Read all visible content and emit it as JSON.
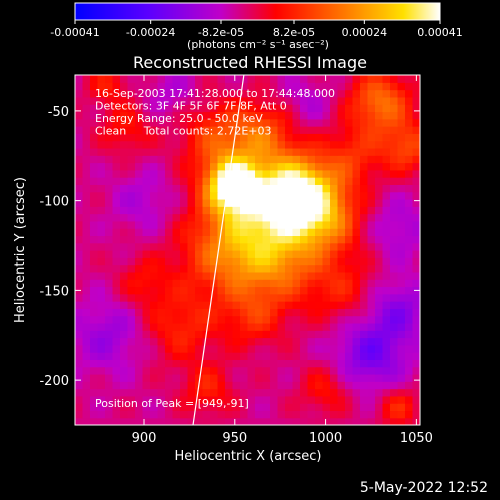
{
  "chart_data": {
    "type": "heatmap",
    "title": "Reconstructed RHESSI Image",
    "xlabel": "Heliocentric X (arcsec)",
    "ylabel": "Heliocentric Y (arcsec)",
    "xlim": [
      862,
      1052
    ],
    "ylim": [
      -225,
      -30
    ],
    "xticks": [
      "900",
      "950",
      "1000",
      "1050"
    ],
    "xtick_values": [
      900,
      950,
      1000,
      1050
    ],
    "yticks": [
      "-50",
      "-100",
      "-150",
      "-200"
    ],
    "ytick_values": [
      -50,
      -100,
      -150,
      -200
    ],
    "colorbar": {
      "ticks": [
        "-0.00041",
        "-0.00024",
        "-8.2e-05",
        "8.2e-05",
        "0.00024",
        "0.00041"
      ],
      "tick_values": [
        -0.00041,
        -0.00024,
        -8.2e-05,
        8.2e-05,
        0.00024,
        0.00041
      ],
      "range": [
        -0.00041,
        0.00041
      ],
      "unit_label": "(photons cm⁻² s⁻¹ asec⁻²)"
    },
    "annotations": [
      "16-Sep-2003 17:41:28.000 to 17:44:48.000",
      "Detectors: 3F 4F 5F 6F 7F 8F, Att 0",
      "Energy Range: 25.0 - 50.0 keV",
      "Clean     Total counts: 2.72E+03"
    ],
    "peak_text": "Position of Peak = [949,-91]",
    "peak": [
      949,
      -91
    ],
    "limb_line": [
      [
        927,
        -225
      ],
      [
        955,
        -30
      ]
    ],
    "blobs": [
      {
        "x": 949,
        "y": -91,
        "v": 0.00041,
        "s": 10
      },
      {
        "x": 985,
        "y": -95,
        "v": 0.00036,
        "s": 14
      },
      {
        "x": 965,
        "y": -105,
        "v": 0.00026,
        "s": 20
      },
      {
        "x": 1000,
        "y": -110,
        "v": 0.0002,
        "s": 14
      },
      {
        "x": 945,
        "y": -130,
        "v": 0.00018,
        "s": 18
      },
      {
        "x": 975,
        "y": -135,
        "v": 0.00016,
        "s": 16
      },
      {
        "x": 940,
        "y": -65,
        "v": 0.00015,
        "s": 14
      },
      {
        "x": 965,
        "y": -62,
        "v": 0.00016,
        "s": 12
      },
      {
        "x": 1030,
        "y": -45,
        "v": 0.00022,
        "s": 12
      },
      {
        "x": 1045,
        "y": -70,
        "v": 0.00016,
        "s": 10
      },
      {
        "x": 1015,
        "y": -75,
        "v": 0.00012,
        "s": 12
      },
      {
        "x": 890,
        "y": -60,
        "v": 0.0001,
        "s": 10
      },
      {
        "x": 880,
        "y": -35,
        "v": 0.0001,
        "s": 8
      },
      {
        "x": 920,
        "y": -170,
        "v": 0.00012,
        "s": 14
      },
      {
        "x": 960,
        "y": -165,
        "v": 0.00011,
        "s": 12
      },
      {
        "x": 1010,
        "y": -150,
        "v": 0.0001,
        "s": 14
      },
      {
        "x": 935,
        "y": -205,
        "v": 0.00011,
        "s": 10
      },
      {
        "x": 1000,
        "y": -205,
        "v": 0.0001,
        "s": 10
      },
      {
        "x": 1040,
        "y": -215,
        "v": 0.00012,
        "s": 8
      },
      {
        "x": 900,
        "y": -145,
        "v": 9e-05,
        "s": 10
      },
      {
        "x": 1025,
        "y": -185,
        "v": -0.00016,
        "s": 14
      },
      {
        "x": 1040,
        "y": -160,
        "v": -0.00012,
        "s": 12
      },
      {
        "x": 880,
        "y": -175,
        "v": -0.0001,
        "s": 14
      },
      {
        "x": 900,
        "y": -100,
        "v": -7e-05,
        "s": 12
      },
      {
        "x": 915,
        "y": -40,
        "v": -6e-05,
        "s": 10
      },
      {
        "x": 990,
        "y": -45,
        "v": -6e-05,
        "s": 10
      },
      {
        "x": 1040,
        "y": -115,
        "v": -8e-05,
        "s": 12
      }
    ]
  },
  "timestamp": "5-May-2022 12:52"
}
